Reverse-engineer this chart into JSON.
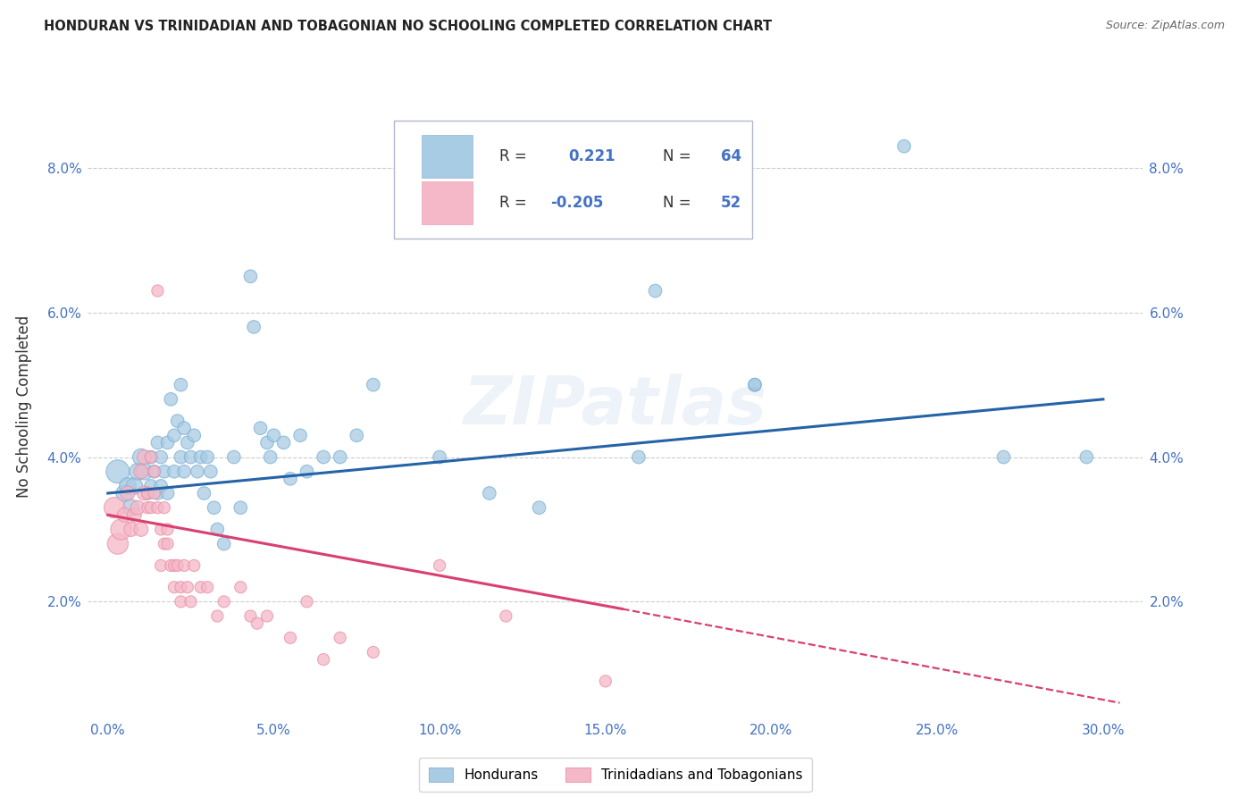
{
  "title": "HONDURAN VS TRINIDADIAN AND TOBAGONIAN NO SCHOOLING COMPLETED CORRELATION CHART",
  "source": "Source: ZipAtlas.com",
  "ylabel": "No Schooling Completed",
  "watermark": "ZIPatlas",
  "blue_color": "#a8cce4",
  "pink_color": "#f5b8c8",
  "blue_line_color": "#2563a8",
  "pink_line_color": "#d94070",
  "blue_scatter": [
    [
      0.003,
      0.038
    ],
    [
      0.005,
      0.035
    ],
    [
      0.006,
      0.036
    ],
    [
      0.007,
      0.033
    ],
    [
      0.008,
      0.036
    ],
    [
      0.009,
      0.038
    ],
    [
      0.01,
      0.04
    ],
    [
      0.011,
      0.038
    ],
    [
      0.012,
      0.035
    ],
    [
      0.013,
      0.04
    ],
    [
      0.013,
      0.036
    ],
    [
      0.014,
      0.038
    ],
    [
      0.015,
      0.042
    ],
    [
      0.015,
      0.035
    ],
    [
      0.016,
      0.04
    ],
    [
      0.016,
      0.036
    ],
    [
      0.017,
      0.038
    ],
    [
      0.018,
      0.042
    ],
    [
      0.018,
      0.035
    ],
    [
      0.019,
      0.048
    ],
    [
      0.02,
      0.043
    ],
    [
      0.02,
      0.038
    ],
    [
      0.021,
      0.045
    ],
    [
      0.022,
      0.05
    ],
    [
      0.022,
      0.04
    ],
    [
      0.023,
      0.044
    ],
    [
      0.023,
      0.038
    ],
    [
      0.024,
      0.042
    ],
    [
      0.025,
      0.04
    ],
    [
      0.026,
      0.043
    ],
    [
      0.027,
      0.038
    ],
    [
      0.028,
      0.04
    ],
    [
      0.029,
      0.035
    ],
    [
      0.03,
      0.04
    ],
    [
      0.031,
      0.038
    ],
    [
      0.032,
      0.033
    ],
    [
      0.033,
      0.03
    ],
    [
      0.035,
      0.028
    ],
    [
      0.038,
      0.04
    ],
    [
      0.04,
      0.033
    ],
    [
      0.043,
      0.065
    ],
    [
      0.044,
      0.058
    ],
    [
      0.046,
      0.044
    ],
    [
      0.048,
      0.042
    ],
    [
      0.049,
      0.04
    ],
    [
      0.05,
      0.043
    ],
    [
      0.053,
      0.042
    ],
    [
      0.055,
      0.037
    ],
    [
      0.058,
      0.043
    ],
    [
      0.06,
      0.038
    ],
    [
      0.065,
      0.04
    ],
    [
      0.07,
      0.04
    ],
    [
      0.075,
      0.043
    ],
    [
      0.08,
      0.05
    ],
    [
      0.1,
      0.04
    ],
    [
      0.115,
      0.035
    ],
    [
      0.13,
      0.033
    ],
    [
      0.16,
      0.04
    ],
    [
      0.195,
      0.05
    ],
    [
      0.24,
      0.083
    ],
    [
      0.27,
      0.04
    ],
    [
      0.295,
      0.04
    ],
    [
      0.165,
      0.063
    ],
    [
      0.195,
      0.05
    ]
  ],
  "pink_scatter": [
    [
      0.002,
      0.033
    ],
    [
      0.003,
      0.028
    ],
    [
      0.004,
      0.03
    ],
    [
      0.005,
      0.032
    ],
    [
      0.006,
      0.035
    ],
    [
      0.007,
      0.03
    ],
    [
      0.008,
      0.032
    ],
    [
      0.009,
      0.033
    ],
    [
      0.01,
      0.03
    ],
    [
      0.01,
      0.038
    ],
    [
      0.011,
      0.04
    ],
    [
      0.011,
      0.035
    ],
    [
      0.012,
      0.035
    ],
    [
      0.012,
      0.033
    ],
    [
      0.013,
      0.04
    ],
    [
      0.013,
      0.033
    ],
    [
      0.014,
      0.035
    ],
    [
      0.014,
      0.038
    ],
    [
      0.015,
      0.063
    ],
    [
      0.015,
      0.033
    ],
    [
      0.016,
      0.03
    ],
    [
      0.016,
      0.025
    ],
    [
      0.017,
      0.028
    ],
    [
      0.017,
      0.033
    ],
    [
      0.018,
      0.03
    ],
    [
      0.018,
      0.028
    ],
    [
      0.019,
      0.025
    ],
    [
      0.02,
      0.025
    ],
    [
      0.02,
      0.022
    ],
    [
      0.021,
      0.025
    ],
    [
      0.022,
      0.022
    ],
    [
      0.022,
      0.02
    ],
    [
      0.023,
      0.025
    ],
    [
      0.024,
      0.022
    ],
    [
      0.025,
      0.02
    ],
    [
      0.026,
      0.025
    ],
    [
      0.028,
      0.022
    ],
    [
      0.03,
      0.022
    ],
    [
      0.033,
      0.018
    ],
    [
      0.035,
      0.02
    ],
    [
      0.04,
      0.022
    ],
    [
      0.043,
      0.018
    ],
    [
      0.045,
      0.017
    ],
    [
      0.048,
      0.018
    ],
    [
      0.055,
      0.015
    ],
    [
      0.06,
      0.02
    ],
    [
      0.065,
      0.012
    ],
    [
      0.07,
      0.015
    ],
    [
      0.08,
      0.013
    ],
    [
      0.1,
      0.025
    ],
    [
      0.12,
      0.018
    ],
    [
      0.15,
      0.009
    ]
  ],
  "blue_line": {
    "x0": 0.0,
    "y0": 0.035,
    "x1": 0.3,
    "y1": 0.048
  },
  "pink_line": {
    "x0": 0.0,
    "y0": 0.032,
    "x1": 0.155,
    "y1": 0.019
  },
  "pink_line_dash_x0": 0.155,
  "pink_line_dash_x1": 0.305,
  "pink_line_dash_y0": 0.019,
  "pink_line_dash_y1": 0.006,
  "xtick_vals": [
    0.0,
    0.05,
    0.1,
    0.15,
    0.2,
    0.25,
    0.3
  ],
  "ytick_vals": [
    0.02,
    0.04,
    0.06,
    0.08
  ],
  "xlim": [
    -0.006,
    0.312
  ],
  "ylim": [
    0.004,
    0.09
  ]
}
